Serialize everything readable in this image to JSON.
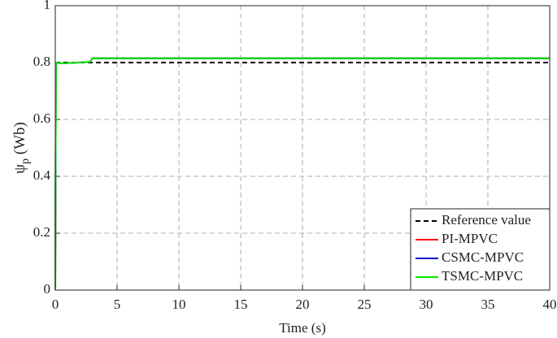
{
  "chart_data": {
    "type": "line",
    "xlabel": "Time (s)",
    "ylabel": [
      "ψ",
      "p",
      " (Wb)"
    ],
    "xlim": [
      0,
      40
    ],
    "xticks": [
      0,
      5,
      10,
      15,
      20,
      25,
      30,
      35,
      40
    ],
    "ylim": [
      0,
      1
    ],
    "yticks": [
      0,
      0.2,
      0.4,
      0.6,
      0.8,
      1
    ],
    "grid": true,
    "legend": "lower right",
    "series": [
      {
        "name": "Reference value",
        "color": "#000000",
        "linestyle": "--",
        "x": [
          0,
          40
        ],
        "values": [
          0.8,
          0.8
        ]
      },
      {
        "name": "PI-MPVC",
        "color": "#ff0000",
        "linestyle": "-",
        "x": [
          0,
          0.05,
          0.5,
          2.8,
          3,
          40
        ],
        "values": [
          0,
          0.8,
          0.797,
          0.802,
          0.815,
          0.815
        ]
      },
      {
        "name": "CSMC-MPVC",
        "color": "#0000cc",
        "linestyle": "-",
        "x": [
          0,
          0.05,
          0.5,
          2.8,
          3,
          40
        ],
        "values": [
          0,
          0.8,
          0.797,
          0.802,
          0.815,
          0.815
        ]
      },
      {
        "name": "TSMC-MPVC",
        "color": "#00ee00",
        "linestyle": "-",
        "x": [
          0,
          0.05,
          0.5,
          2.8,
          3,
          40
        ],
        "values": [
          0,
          0.8,
          0.797,
          0.802,
          0.815,
          0.815
        ]
      }
    ]
  }
}
